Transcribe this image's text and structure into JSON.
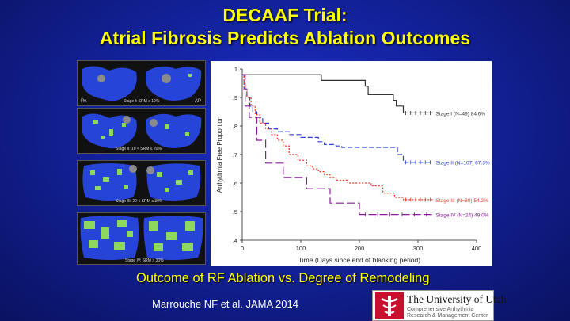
{
  "slide": {
    "title_line1": "DECAAF Trial:",
    "title_line2": "Atrial Fibrosis Predicts Ablation Outcomes",
    "subtitle": "Outcome of RF Ablation vs. Degree of Remodeling",
    "citation": "Marrouche NF et al. JAMA 2014"
  },
  "images": {
    "stage_captions": [
      "Stage I: SRM ≤ 10%",
      "Stage II: 10 < SRM ≤ 20%",
      "Stage III: 20 < SRM ≤ 30%",
      "Stage IV: SRM > 30%"
    ],
    "view_labels": [
      "PA",
      "AP"
    ]
  },
  "logo": {
    "name": "The University of Utah",
    "center_line1": "Comprehensive Arrhythmia",
    "center_line2": "Research & Management Center"
  },
  "colors": {
    "background": "#13229c",
    "title": "#ffff00",
    "stage_I": "#333333",
    "stage_II": "#2c3fd6",
    "stage_III": "#f0321e",
    "stage_IV": "#8a1a9a",
    "lesion_blue": "#2744d8",
    "fibrosis_green": "#8fd860"
  },
  "chart_data": {
    "type": "line",
    "xlabel": "Time (Days since end of blanking period)",
    "ylabel": "Arrhythmia Free Proportion",
    "xlim": [
      0,
      400
    ],
    "ylim": [
      0.4,
      1.0
    ],
    "xticks": [
      0,
      100,
      200,
      300,
      400
    ],
    "yticks": [
      0.4,
      0.5,
      0.6,
      0.7,
      0.8,
      0.9,
      1
    ],
    "ytick_labels": [
      ".4",
      ".5",
      ".6",
      ".7",
      ".8",
      ".9",
      "1"
    ],
    "series": [
      {
        "name": "Stage I (N=49) 84.6%",
        "color": "#333333",
        "dash": "",
        "x": [
          0,
          5,
          100,
          135,
          200,
          210,
          215,
          245,
          258,
          263,
          268,
          275,
          325
        ],
        "y": [
          0.98,
          0.98,
          0.98,
          0.96,
          0.96,
          0.94,
          0.91,
          0.91,
          0.89,
          0.87,
          0.87,
          0.846,
          0.846
        ]
      },
      {
        "name": "Stage II (N=107) 67.3%",
        "color": "#2c3fd6",
        "dash": "6,3",
        "x": [
          0,
          3,
          8,
          13,
          18,
          25,
          35,
          45,
          60,
          80,
          100,
          130,
          140,
          160,
          170,
          250,
          265,
          275,
          325
        ],
        "y": [
          0.98,
          0.93,
          0.9,
          0.87,
          0.85,
          0.83,
          0.81,
          0.79,
          0.78,
          0.77,
          0.76,
          0.745,
          0.735,
          0.73,
          0.725,
          0.725,
          0.7,
          0.673,
          0.673
        ]
      },
      {
        "name": "Stage III (N=80) 54.2%",
        "color": "#f0321e",
        "dash": "2,2",
        "x": [
          0,
          3,
          8,
          15,
          22,
          30,
          40,
          50,
          60,
          70,
          80,
          95,
          110,
          120,
          130,
          140,
          150,
          160,
          180,
          220,
          240,
          260,
          275,
          325
        ],
        "y": [
          0.98,
          0.93,
          0.9,
          0.87,
          0.84,
          0.81,
          0.79,
          0.77,
          0.75,
          0.73,
          0.7,
          0.68,
          0.66,
          0.65,
          0.64,
          0.63,
          0.62,
          0.61,
          0.6,
          0.59,
          0.565,
          0.55,
          0.542,
          0.542
        ]
      },
      {
        "name": "Stage IV (N=24) 49.0%",
        "color": "#8a1a9a",
        "dash": "10,4",
        "x": [
          0,
          5,
          12,
          25,
          40,
          70,
          110,
          150,
          200,
          325
        ],
        "y": [
          0.98,
          0.87,
          0.83,
          0.75,
          0.67,
          0.62,
          0.58,
          0.53,
          0.49,
          0.49
        ]
      }
    ]
  }
}
